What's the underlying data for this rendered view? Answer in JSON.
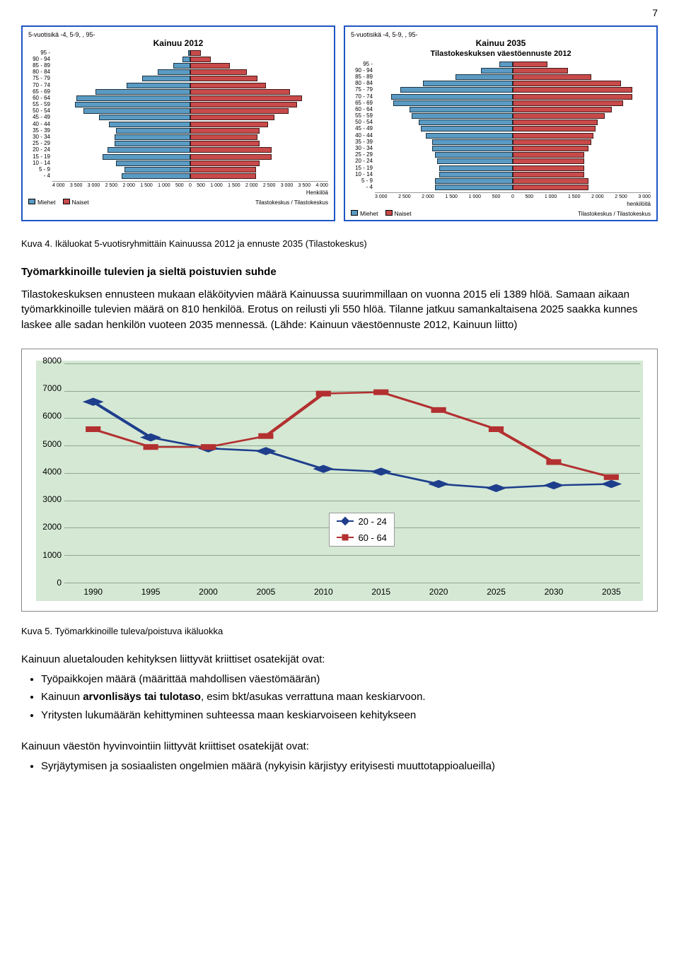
{
  "page_number": "7",
  "pyramids": {
    "left": {
      "meta": "5-vuotisikä -4, 5-9, , 95-",
      "title": "Kainuu 2012",
      "max": 4000,
      "age_labels": [
        "95 -",
        "90 - 94",
        "85 - 89",
        "80 - 84",
        "75 - 79",
        "70 - 74",
        "65 - 69",
        "60 - 64",
        "55 - 59",
        "50 - 54",
        "45 - 49",
        "40 - 44",
        "35 - 39",
        "30 - 34",
        "25 - 29",
        "20 - 24",
        "15 - 19",
        "10 - 14",
        "5 - 9",
        "- 4"
      ],
      "male": [
        60,
        220,
        500,
        950,
        1400,
        1850,
        2750,
        3300,
        3350,
        3100,
        2650,
        2350,
        2150,
        2200,
        2200,
        2400,
        2550,
        2150,
        1900,
        2000
      ],
      "female": [
        300,
        600,
        1150,
        1650,
        1950,
        2200,
        2900,
        3250,
        3100,
        2850,
        2450,
        2250,
        2000,
        1950,
        2000,
        2350,
        2350,
        2000,
        1900,
        1900
      ],
      "xticks": [
        "4 000",
        "3 500",
        "3 000",
        "2 500",
        "2 000",
        "1 500",
        "1 000",
        "500",
        "0",
        "500",
        "1 000",
        "1 500",
        "2 000",
        "2 500",
        "3 000",
        "3 500",
        "4 000"
      ],
      "xunit": "Henkilöä",
      "legend_m": "Miehet",
      "legend_f": "Naiset",
      "source": "Tilastokeskus / Tilastokeskus"
    },
    "right": {
      "meta": "5-vuotisikä -4, 5-9, , 95-",
      "title": "Kainuu 2035",
      "subtitle": "Tilastokeskuksen väestöennuste 2012",
      "max": 3000,
      "age_labels": [
        "95 -",
        "90 - 94",
        "85 - 89",
        "80 - 84",
        "75 - 79",
        "70 - 74",
        "65 - 69",
        "60 - 64",
        "55 - 59",
        "50 - 54",
        "45 - 49",
        "40 - 44",
        "35 - 39",
        "30 - 34",
        "25 - 29",
        "20 - 24",
        "15 - 19",
        "10 - 14",
        "5 - 9",
        "- 4"
      ],
      "male": [
        300,
        700,
        1250,
        1950,
        2450,
        2650,
        2600,
        2250,
        2200,
        2050,
        2000,
        1900,
        1750,
        1750,
        1700,
        1650,
        1600,
        1600,
        1700,
        1700
      ],
      "female": [
        750,
        1200,
        1700,
        2350,
        2600,
        2600,
        2400,
        2150,
        2000,
        1850,
        1800,
        1750,
        1700,
        1650,
        1550,
        1550,
        1550,
        1550,
        1650,
        1650
      ],
      "xticks": [
        "3 000",
        "2 500",
        "2 000",
        "1 500",
        "1 000",
        "500",
        "0",
        "500",
        "1 000",
        "1 500",
        "2 000",
        "2 500",
        "3 000"
      ],
      "xunit": "henkilöitä",
      "legend_m": "Miehet",
      "legend_f": "Naiset",
      "source": "Tilastokeskus / Tilastokeskus"
    }
  },
  "caption4": "Kuva 4. Ikäluokat 5-vuotisryhmittäin Kainuussa 2012 ja ennuste 2035 (Tilastokeskus)",
  "heading2": "Työmarkkinoille tulevien ja sieltä poistuvien suhde",
  "para1": "Tilastokeskuksen ennusteen mukaan eläköityvien määrä Kainuussa suurimmillaan on vuonna 2015 eli 1389 hlöä. Samaan aikaan työmarkkinoille tulevien määrä on 810 henkilöä. Erotus on reilusti yli 550 hlöä. Tilanne jatkuu samankaltaisena 2025 saakka kunnes laskee alle sadan henkilön vuoteen 2035 mennessä. (Lähde: Kainuun väestöennuste 2012, Kainuun liitto)",
  "line_chart": {
    "background_color": "#d4e8d4",
    "grid_color": "#8fa88f",
    "ymin": 0,
    "ymax": 8000,
    "ystep": 1000,
    "x_categories": [
      "1990",
      "1995",
      "2000",
      "2005",
      "2010",
      "2015",
      "2020",
      "2025",
      "2030",
      "2035"
    ],
    "series": [
      {
        "name": "20 - 24",
        "color": "#1e3e8c",
        "marker": "diamond",
        "values": [
          6600,
          5300,
          4900,
          4800,
          4150,
          4050,
          3600,
          3450,
          3550,
          3600
        ]
      },
      {
        "name": "60 - 64",
        "color": "#b33030",
        "marker": "square",
        "values": [
          5600,
          4950,
          4950,
          5350,
          6900,
          6950,
          6300,
          5600,
          4400,
          3850
        ]
      }
    ],
    "legend_pos": {
      "left_pct": 46,
      "top_pct": 68
    }
  },
  "caption5": "Kuva 5. Työmarkkinoille tuleva/poistuva ikäluokka",
  "section_crit1": "Kainuun aluetalouden kehityksen liittyvät kriittiset osatekijät ovat:",
  "bullets1": [
    "Työpaikkojen määrä (määrittää mahdollisen väestömäärän)",
    "Kainuun <b>arvonlisäys tai tulotaso</b>, esim bkt/asukas verrattuna maan keskiarvoon.",
    "Yritysten lukumäärän kehittyminen suhteessa maan keskiarvoiseen kehitykseen"
  ],
  "section_crit2": "Kainuun väestön hyvinvointiin liittyvät kriittiset osatekijät ovat:",
  "bullets2": [
    "Syrjäytymisen ja sosiaalisten ongelmien määrä (nykyisin kärjistyy erityisesti muuttotappioalueilla)"
  ]
}
